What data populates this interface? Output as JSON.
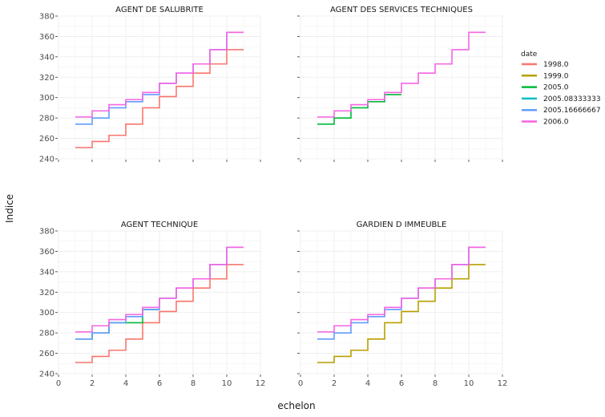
{
  "chart_data": {
    "type": "line",
    "step": true,
    "xlabel": "echelon",
    "ylabel": "Indice",
    "xlim": [
      0,
      12
    ],
    "ylim": [
      240,
      380
    ],
    "x_ticks": [
      0,
      2,
      4,
      6,
      8,
      10,
      12
    ],
    "y_ticks": [
      240,
      260,
      280,
      300,
      320,
      340,
      360,
      380
    ],
    "grid": true,
    "legend": {
      "title": "date",
      "position": "right",
      "entries": [
        {
          "label": "1998.0",
          "color": "#f8766d"
        },
        {
          "label": "1999.0",
          "color": "#b79f00"
        },
        {
          "label": "2005.0",
          "color": "#00ba38"
        },
        {
          "label": "2005.08333333",
          "color": "#00bfc4"
        },
        {
          "label": "2005.16666667",
          "color": "#619cff"
        },
        {
          "label": "2006.0",
          "color": "#f564e3"
        }
      ]
    },
    "panels": [
      {
        "title": "AGENT DE SALUBRITE",
        "series": [
          {
            "name": "1998.0",
            "color": "#f8766d",
            "x": [
              1,
              2,
              3,
              4,
              5,
              6,
              7,
              8,
              9,
              10,
              11
            ],
            "y": [
              251,
              257,
              263,
              274,
              290,
              301,
              311,
              324,
              333,
              347,
              347
            ]
          },
          {
            "name": "2005.16666667",
            "color": "#619cff",
            "x": [
              1,
              2,
              3,
              4,
              5,
              6,
              7,
              8,
              9,
              10,
              11
            ],
            "y": [
              274,
              280,
              290,
              296,
              303,
              314,
              324,
              333,
              347,
              364,
              364
            ]
          },
          {
            "name": "2006.0",
            "color": "#f564e3",
            "x": [
              1,
              2,
              3,
              4,
              5,
              6,
              7,
              8,
              9,
              10,
              11
            ],
            "y": [
              281,
              287,
              293,
              298,
              305,
              314,
              324,
              333,
              347,
              364,
              364
            ]
          }
        ]
      },
      {
        "title": "AGENT DES SERVICES TECHNIQUES",
        "series": [
          {
            "name": "2005.0",
            "color": "#00ba38",
            "x": [
              1,
              2,
              3,
              4,
              5,
              6
            ],
            "y": [
              274,
              280,
              290,
              296,
              303,
              303
            ]
          },
          {
            "name": "2006.0",
            "color": "#f564e3",
            "x": [
              1,
              2,
              3,
              4,
              5,
              6,
              7,
              8,
              9,
              10,
              11
            ],
            "y": [
              281,
              287,
              293,
              298,
              305,
              314,
              324,
              333,
              347,
              364,
              364
            ]
          }
        ]
      },
      {
        "title": "AGENT TECHNIQUE",
        "series": [
          {
            "name": "1998.0",
            "color": "#f8766d",
            "x": [
              1,
              2,
              3,
              4,
              5,
              6,
              7,
              8,
              9,
              10,
              11
            ],
            "y": [
              251,
              257,
              263,
              274,
              290,
              301,
              311,
              324,
              333,
              347,
              347
            ]
          },
          {
            "name": "2005.0",
            "color": "#00ba38",
            "x": [
              1,
              2,
              3,
              4,
              5,
              6
            ],
            "y": [
              274,
              280,
              290,
              290,
              303,
              303
            ]
          },
          {
            "name": "2005.16666667",
            "color": "#619cff",
            "x": [
              1,
              2,
              3,
              4,
              5,
              6,
              7,
              8,
              9,
              10,
              11
            ],
            "y": [
              274,
              280,
              290,
              296,
              303,
              314,
              324,
              333,
              347,
              364,
              364
            ]
          },
          {
            "name": "2006.0",
            "color": "#f564e3",
            "x": [
              1,
              2,
              3,
              4,
              5,
              6,
              7,
              8,
              9,
              10,
              11
            ],
            "y": [
              281,
              287,
              293,
              298,
              305,
              314,
              324,
              333,
              347,
              364,
              364
            ]
          }
        ]
      },
      {
        "title": "GARDIEN D IMMEUBLE",
        "series": [
          {
            "name": "1999.0",
            "color": "#b79f00",
            "x": [
              1,
              2,
              3,
              4,
              5,
              6,
              7,
              8,
              9,
              10,
              11
            ],
            "y": [
              251,
              257,
              263,
              274,
              290,
              301,
              311,
              324,
              333,
              347,
              347
            ]
          },
          {
            "name": "2005.16666667",
            "color": "#619cff",
            "x": [
              1,
              2,
              3,
              4,
              5,
              6,
              7,
              8,
              9,
              10,
              11
            ],
            "y": [
              274,
              280,
              290,
              296,
              303,
              314,
              324,
              333,
              347,
              364,
              364
            ]
          },
          {
            "name": "2006.0",
            "color": "#f564e3",
            "x": [
              1,
              2,
              3,
              4,
              5,
              6,
              7,
              8,
              9,
              10,
              11
            ],
            "y": [
              281,
              287,
              293,
              298,
              305,
              314,
              324,
              333,
              347,
              364,
              364
            ]
          }
        ]
      }
    ]
  }
}
